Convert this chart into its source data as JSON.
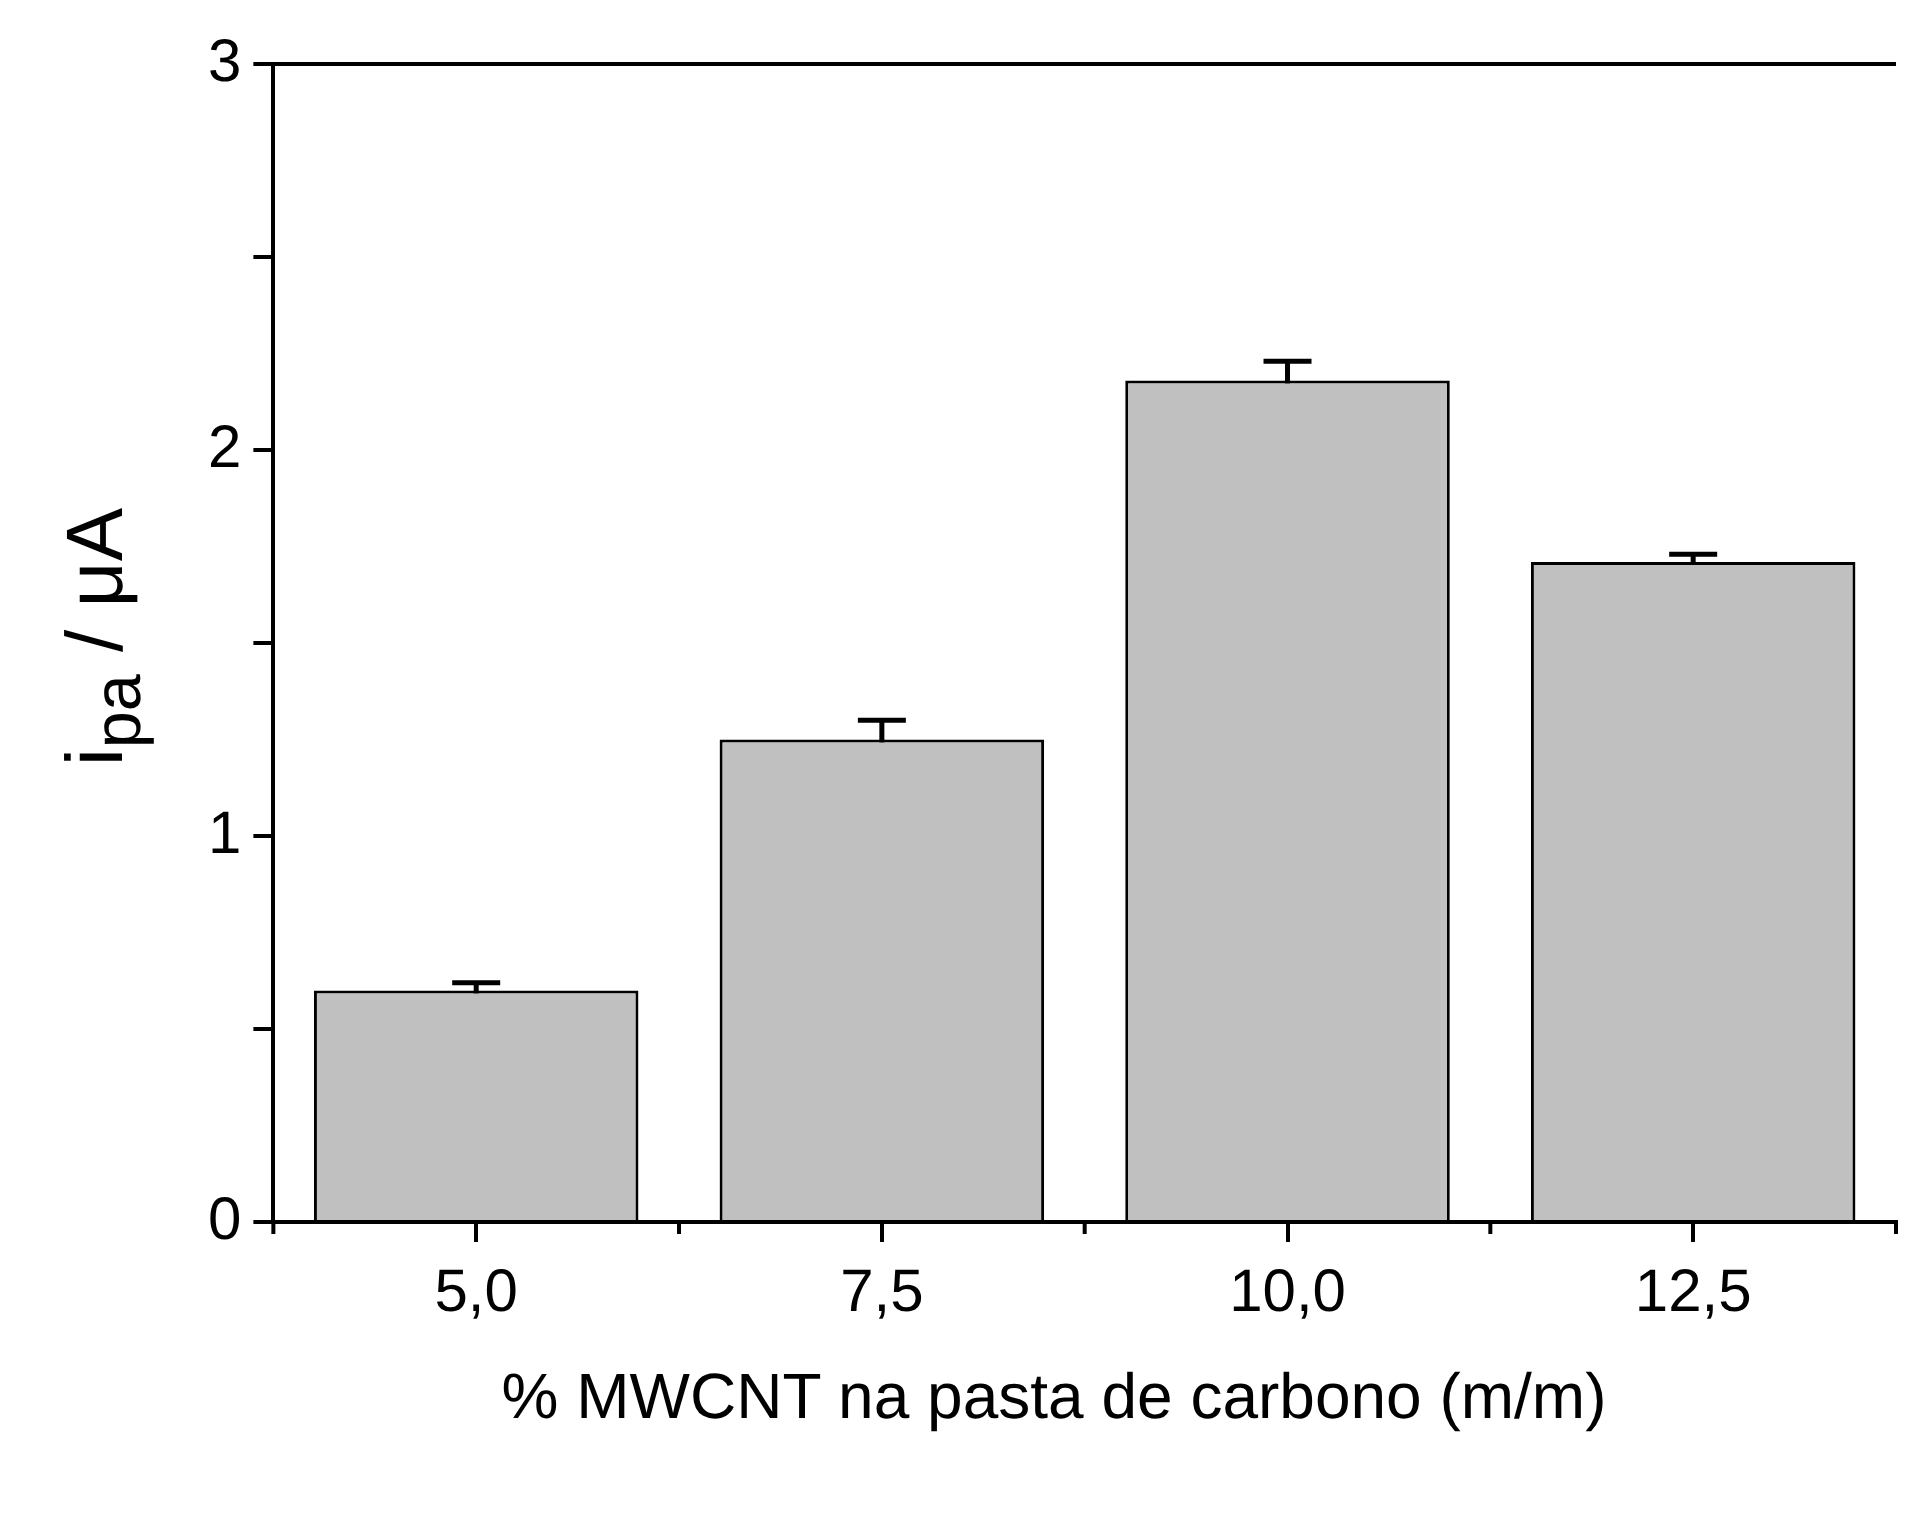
{
  "chart_data": {
    "type": "bar",
    "xlabel": "% MWCNT na pasta de carbono (m/m)",
    "ylabel": "i$_{pa}$ / μA",
    "categories": [
      "5,0",
      "7,5",
      "10,0",
      "12,5"
    ],
    "values": [
      0.6,
      1.25,
      2.18,
      1.71
    ],
    "errors": [
      0.02,
      0.05,
      0.05,
      0.02
    ],
    "color": "#c0c0c0",
    "ylim": [
      0,
      3
    ],
    "yticks": [
      0,
      {
        "value": 0.5,
        "label": null
      },
      1,
      {
        "value": 1.5,
        "label": null
      },
      2,
      {
        "value": 2.5,
        "label": null
      },
      3
    ],
    "grid": false,
    "legend": false
  }
}
